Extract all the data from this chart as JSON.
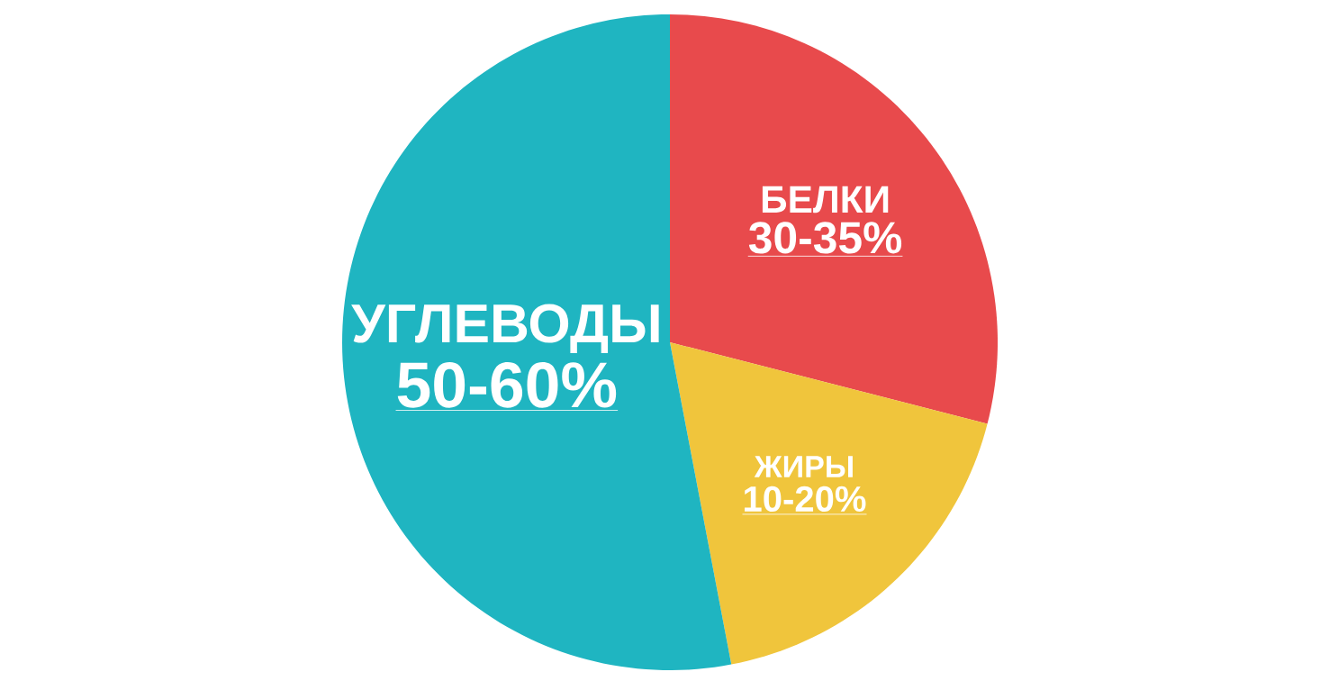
{
  "chart_data": {
    "type": "pie",
    "categories": [
      "БЕЛКИ",
      "ЖИРЫ",
      "УГЛЕВОДЫ"
    ],
    "values": [
      29,
      18,
      53
    ],
    "annotations": [
      "30-35%",
      "10-20%",
      "50-60%"
    ],
    "colors": [
      "#e84a4c",
      "#f0c53c",
      "#1fb5c1"
    ]
  }
}
